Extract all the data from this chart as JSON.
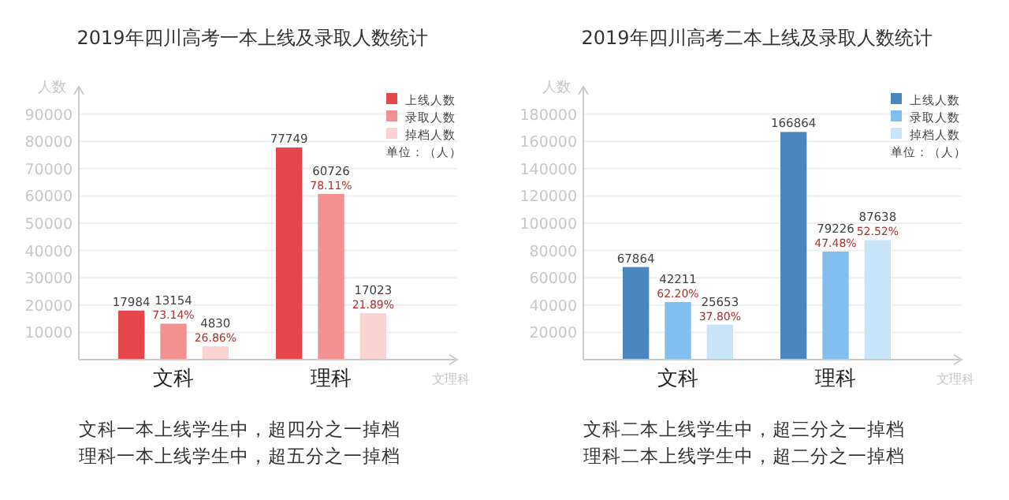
{
  "chart_data": [
    {
      "type": "bar",
      "title": "2019年四川高考一本上线及录取人数统计",
      "xlabel": "文理科",
      "ylabel": "人数",
      "categories": [
        "文科",
        "理科"
      ],
      "series": [
        {
          "name": "上线人数",
          "color": "#e5474b",
          "values": [
            17984,
            77749
          ],
          "value_labels": [
            "17984",
            "77749"
          ]
        },
        {
          "name": "录取人数",
          "color": "#f39091",
          "values": [
            13154,
            60726
          ],
          "value_labels": [
            "13154\n73.14%",
            "60726\n78.11%"
          ]
        },
        {
          "name": "掉档人数",
          "color": "#fad3d3",
          "values": [
            4830,
            17023
          ],
          "value_labels": [
            "4830\n26.86%",
            "17023\n21.89%"
          ]
        }
      ],
      "ylim": [
        0,
        100000
      ],
      "yticks": [
        10000,
        20000,
        30000,
        40000,
        50000,
        60000,
        70000,
        80000,
        90000
      ],
      "grid": "y",
      "legend": "top right",
      "legend_title": "单位：（人）",
      "annotations": [
        "文科一本上线学生中，超四分之一掉档",
        "理科一本上线学生中，超五分之一掉档"
      ]
    },
    {
      "type": "bar",
      "title": "2019年四川高考二本上线及录取人数统计",
      "xlabel": "文理科",
      "ylabel": "人数",
      "categories": [
        "文科",
        "理科"
      ],
      "series": [
        {
          "name": "上线人数",
          "color": "#4a87c0",
          "values": [
            67864,
            166864
          ],
          "value_labels": [
            "67864",
            "166864"
          ]
        },
        {
          "name": "录取人数",
          "color": "#80bff0",
          "values": [
            42211,
            79226
          ],
          "value_labels": [
            "42211\n62.20%",
            "79226\n47.48%"
          ]
        },
        {
          "name": "掉档人数",
          "color": "#c8e4f9",
          "values": [
            25653,
            87638
          ],
          "value_labels": [
            "25653\n37.80%",
            "87638\n52.52%"
          ]
        }
      ],
      "ylim": [
        0,
        200000
      ],
      "yticks": [
        20000,
        40000,
        60000,
        80000,
        100000,
        120000,
        140000,
        160000,
        180000
      ],
      "grid": "y",
      "legend": "top right",
      "legend_title": "单位：（人）",
      "annotations": [
        "文科二本上线学生中，超三分之一掉档",
        "理科二本上线学生中，超二分之一掉档"
      ]
    }
  ]
}
